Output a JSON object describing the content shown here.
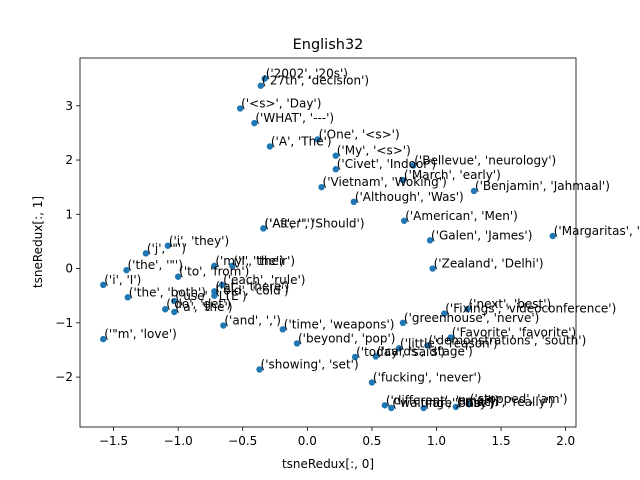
{
  "chart_data": {
    "type": "scatter",
    "title": "English32",
    "xlabel": "tsneRedux[:, 0]",
    "ylabel": "tsneRedux[:, 1]",
    "xlim": [
      -1.76,
      2.08
    ],
    "ylim": [
      -2.92,
      3.88
    ],
    "xticks": [
      -1.5,
      -1.0,
      -0.5,
      0.0,
      0.5,
      1.0,
      1.5,
      2.0
    ],
    "xtick_labels": [
      "−1.5",
      "−1.0",
      "−0.5",
      "0.0",
      "0.5",
      "1.0",
      "1.5",
      "2.0"
    ],
    "yticks": [
      -2,
      -1,
      0,
      1,
      2,
      3
    ],
    "ytick_labels": [
      "−2",
      "−1",
      "0",
      "1",
      "2",
      "3"
    ],
    "grid": false,
    "marker_color": "#1f77b4",
    "points": [
      {
        "x": -0.33,
        "y": 3.5,
        "label": "('2002', '20s')"
      },
      {
        "x": -0.36,
        "y": 3.37,
        "label": "('27th', 'decision')"
      },
      {
        "x": -0.52,
        "y": 2.95,
        "label": "('<s>', 'Day')"
      },
      {
        "x": -0.41,
        "y": 2.68,
        "label": "('WHAT', '---')"
      },
      {
        "x": 0.08,
        "y": 2.38,
        "label": "('One', '<s>')"
      },
      {
        "x": -0.29,
        "y": 2.25,
        "label": "('A', 'The')"
      },
      {
        "x": 0.22,
        "y": 2.08,
        "label": "('My', '<s>')"
      },
      {
        "x": 0.82,
        "y": 1.9,
        "label": "('Bellevue', 'neurology')"
      },
      {
        "x": 0.22,
        "y": 1.83,
        "label": "('Civet', 'Indoor')"
      },
      {
        "x": 0.74,
        "y": 1.63,
        "label": "('March', 'early')"
      },
      {
        "x": 0.11,
        "y": 1.5,
        "label": "('Vietnam', 'Woking')"
      },
      {
        "x": 1.29,
        "y": 1.43,
        "label": "('Benjamin', 'Jahmaal')"
      },
      {
        "x": 0.36,
        "y": 1.23,
        "label": "('Although', 'Was')"
      },
      {
        "x": 0.75,
        "y": 0.88,
        "label": "('American', 'Men')"
      },
      {
        "x": -0.34,
        "y": 0.74,
        "label": "('After', 'Should')"
      },
      {
        "x": -0.34,
        "y": 0.74,
        "label": "('As', '\"')"
      },
      {
        "x": 1.9,
        "y": 0.6,
        "label": "('Margaritas', 'kickball')"
      },
      {
        "x": 0.95,
        "y": 0.52,
        "label": "('Galen', 'James')"
      },
      {
        "x": -1.08,
        "y": 0.42,
        "label": "('i', 'they')"
      },
      {
        "x": -1.25,
        "y": 0.28,
        "label": "('j', '\"')"
      },
      {
        "x": -0.72,
        "y": 0.05,
        "label": "('my', 'the')"
      },
      {
        "x": -0.58,
        "y": 0.05,
        "label": "('I', 'their')"
      },
      {
        "x": -1.4,
        "y": -0.03,
        "label": "('the', '\"')"
      },
      {
        "x": 0.97,
        "y": 0.0,
        "label": "('Zealand', 'Delhi')"
      },
      {
        "x": -1.0,
        "y": -0.15,
        "label": "('to', 'from')"
      },
      {
        "x": -0.66,
        "y": -0.3,
        "label": "('each', 'rule')"
      },
      {
        "x": -1.58,
        "y": -0.3,
        "label": "('i', 'I')"
      },
      {
        "x": -0.72,
        "y": -0.42,
        "label": "('at', 'there')"
      },
      {
        "x": -0.72,
        "y": -0.5,
        "label": "('old', 'cold')"
      },
      {
        "x": -1.39,
        "y": -0.53,
        "label": "('the', 'both')"
      },
      {
        "x": -1.03,
        "y": -0.6,
        "label": "('use', 'LTE')"
      },
      {
        "x": -1.1,
        "y": -0.75,
        "label": "('do', 'get')"
      },
      {
        "x": -1.03,
        "y": -0.8,
        "label": "('a', 'the')"
      },
      {
        "x": 1.24,
        "y": -0.75,
        "label": "('next', 'best')"
      },
      {
        "x": 1.06,
        "y": -0.83,
        "label": "('Fixings', 'videoconference')"
      },
      {
        "x": 0.74,
        "y": -1.0,
        "label": "('greenhouse', 'nerve')"
      },
      {
        "x": -0.65,
        "y": -1.05,
        "label": "('and', ',')"
      },
      {
        "x": -0.19,
        "y": -1.12,
        "label": "('time', 'weapons')"
      },
      {
        "x": 1.11,
        "y": -1.27,
        "label": "('Favorite', 'favorite')"
      },
      {
        "x": -1.58,
        "y": -1.3,
        "label": "('\"m', 'love')"
      },
      {
        "x": -0.08,
        "y": -1.38,
        "label": "('beyond', 'pop')"
      },
      {
        "x": 0.93,
        "y": -1.42,
        "label": "('demonstrations', 'south')"
      },
      {
        "x": 0.71,
        "y": -1.47,
        "label": "('little', 'reason')"
      },
      {
        "x": 0.53,
        "y": -1.62,
        "label": "('cards', 'stage')"
      },
      {
        "x": 0.37,
        "y": -1.63,
        "label": "('today', 'said')"
      },
      {
        "x": -0.37,
        "y": -1.86,
        "label": "('showing', 'set')"
      },
      {
        "x": 0.5,
        "y": -2.1,
        "label": "('fucking', 'never')"
      },
      {
        "x": 1.25,
        "y": -2.5,
        "label": "('stopped', 'am')"
      },
      {
        "x": 1.15,
        "y": -2.55,
        "label": "('much', 'really')"
      },
      {
        "x": 0.6,
        "y": -2.52,
        "label": "('different', 'small')"
      },
      {
        "x": 0.65,
        "y": -2.57,
        "label": "('waiting', 'busy')"
      },
      {
        "x": 0.9,
        "y": -2.57,
        "label": "('are', 'not')"
      }
    ]
  }
}
